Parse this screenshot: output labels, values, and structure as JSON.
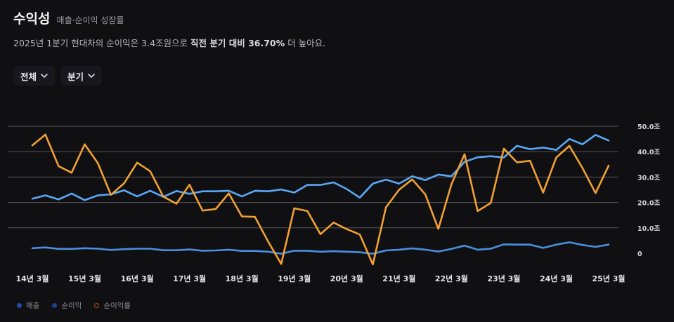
{
  "header": {
    "title": "수익성",
    "subtitle": "매출·순이익 성장률"
  },
  "summary": {
    "prefix": "2025년 1분기 현대차의 순이익은 3.4조원으로 ",
    "highlight": "직전 분기 대비 36.70%",
    "suffix": " 더 높아요."
  },
  "filters": {
    "range_label": "전체",
    "period_label": "분기"
  },
  "legend": {
    "items": [
      {
        "label": "매출",
        "color": "#1e4fa8",
        "style": "filled"
      },
      {
        "label": "순이익",
        "color": "#1e3f8f",
        "style": "filled"
      },
      {
        "label": "순이익률",
        "color": "#c2410c",
        "style": "ring"
      }
    ]
  },
  "chart_data": {
    "type": "line",
    "x_tick_labels": [
      "14년 3월",
      "15년 3월",
      "16년 3월",
      "17년 3월",
      "18년 3월",
      "19년 3월",
      "20년 3월",
      "21년 3월",
      "22년 3월",
      "23년 3월",
      "24년 3월",
      "25년 3월"
    ],
    "y_tick_labels": [
      "0",
      "10.0조",
      "20.0조",
      "30.0조",
      "40.0조",
      "50.0조"
    ],
    "ylim": [
      0,
      50
    ],
    "colors": {
      "매출": "#5aa8f5",
      "순이익": "#4a8fe0",
      "순이익률": "#f2a033",
      "grid": "#55555c"
    },
    "series": [
      {
        "name": "매출",
        "values": [
          21.5,
          22.8,
          21.2,
          23.5,
          20.9,
          22.8,
          23.2,
          24.8,
          22.4,
          24.6,
          22.2,
          24.5,
          23.4,
          24.4,
          24.4,
          24.6,
          22.4,
          24.6,
          24.4,
          25.1,
          23.9,
          26.9,
          26.9,
          27.9,
          25.3,
          21.9,
          27.4,
          29.0,
          27.4,
          30.3,
          28.8,
          31.0,
          30.3,
          36.0,
          37.8,
          38.2,
          37.7,
          42.3,
          41.0,
          41.6,
          40.7,
          45.0,
          42.9,
          46.6,
          44.4
        ]
      },
      {
        "name": "순이익",
        "values": [
          2.0,
          2.3,
          1.7,
          1.7,
          2.0,
          1.8,
          1.3,
          1.6,
          1.8,
          1.8,
          1.2,
          1.2,
          1.5,
          1.0,
          1.1,
          1.4,
          0.9,
          0.9,
          0.6,
          -0.2,
          1.0,
          1.0,
          0.6,
          0.8,
          0.6,
          0.4,
          -0.2,
          1.1,
          1.4,
          1.9,
          1.4,
          0.7,
          1.7,
          3.0,
          1.4,
          1.8,
          3.5,
          3.4,
          3.4,
          2.1,
          3.4,
          4.3,
          3.3,
          2.5,
          3.4
        ]
      },
      {
        "name": "순이익률",
        "values": [
          42.5,
          46.7,
          34.3,
          31.7,
          42.9,
          35.5,
          23.0,
          27.5,
          35.7,
          32.3,
          22.3,
          19.5,
          27.0,
          16.8,
          17.4,
          23.6,
          14.5,
          14.3,
          4.6,
          -4.2,
          17.7,
          16.6,
          7.5,
          12.1,
          9.5,
          7.4,
          -4.4,
          18.1,
          25.0,
          29.1,
          23.2,
          9.6,
          27.2,
          39.0,
          16.6,
          19.8,
          41.2,
          35.8,
          36.4,
          23.9,
          37.7,
          42.3,
          33.6,
          23.7,
          34.5
        ]
      }
    ]
  }
}
